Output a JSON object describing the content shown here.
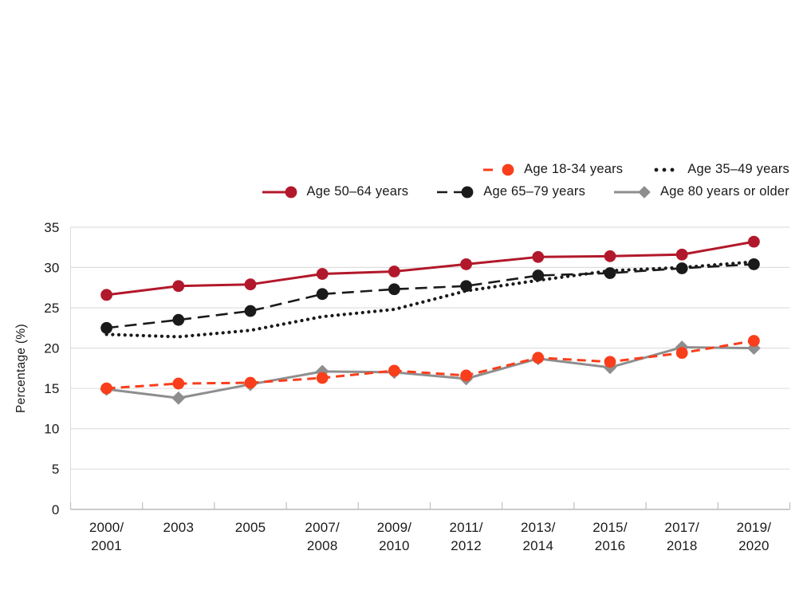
{
  "chart_data": {
    "type": "line",
    "title": "",
    "xlabel": "",
    "ylabel": "Percentage (%)",
    "ylim": [
      0,
      35
    ],
    "yticks": [
      0,
      5,
      10,
      15,
      20,
      25,
      30,
      35
    ],
    "grid": true,
    "legend_position": "top-right",
    "background": "#FFFFFF",
    "gridline_color": "#DCDCDC",
    "axis_color": "#BFBFBF",
    "categories": [
      [
        "2000/",
        "2001"
      ],
      [
        "2003"
      ],
      [
        "2005"
      ],
      [
        "2007/",
        "2008"
      ],
      [
        "2009/",
        "2010"
      ],
      [
        "2011/",
        "2012"
      ],
      [
        "2013/",
        "2014"
      ],
      [
        "2015/",
        "2016"
      ],
      [
        "2017/",
        "2018"
      ],
      [
        "2019/",
        "2020"
      ]
    ],
    "series": [
      {
        "name": "Age 18-34 years",
        "color": "#F93E1C",
        "line_style": "dashed",
        "marker": "circle",
        "values": [
          15.0,
          15.6,
          15.7,
          16.3,
          17.2,
          16.6,
          18.8,
          18.3,
          19.4,
          20.9
        ]
      },
      {
        "name": "Age 35–49 years",
        "color": "#1A1A1A",
        "line_style": "dotted",
        "marker": "none",
        "values": [
          21.7,
          21.4,
          22.2,
          23.9,
          24.8,
          27.1,
          28.4,
          29.6,
          30.0,
          30.7
        ]
      },
      {
        "name": "Age 50–64 years",
        "color": "#B2182B",
        "line_style": "solid",
        "marker": "circle",
        "values": [
          26.6,
          27.7,
          27.9,
          29.2,
          29.5,
          30.4,
          31.3,
          31.4,
          31.6,
          33.2
        ]
      },
      {
        "name": "Age 65–79 years",
        "color": "#1A1A1A",
        "line_style": "long-dash",
        "marker": "circle",
        "values": [
          22.5,
          23.5,
          24.6,
          26.7,
          27.3,
          27.7,
          29.0,
          29.3,
          29.9,
          30.4
        ]
      },
      {
        "name": "Age 80 years or older",
        "color": "#8E8E8E",
        "line_style": "solid",
        "marker": "diamond",
        "values": [
          14.9,
          13.8,
          15.5,
          17.1,
          17.0,
          16.2,
          18.7,
          17.6,
          20.1,
          20.0
        ]
      }
    ],
    "legend_rows": [
      [
        "Age 18-34 years",
        "Age 35–49 years"
      ],
      [
        "Age 50–64 years",
        "Age 65–79 years",
        "Age 80 years or older"
      ]
    ]
  }
}
